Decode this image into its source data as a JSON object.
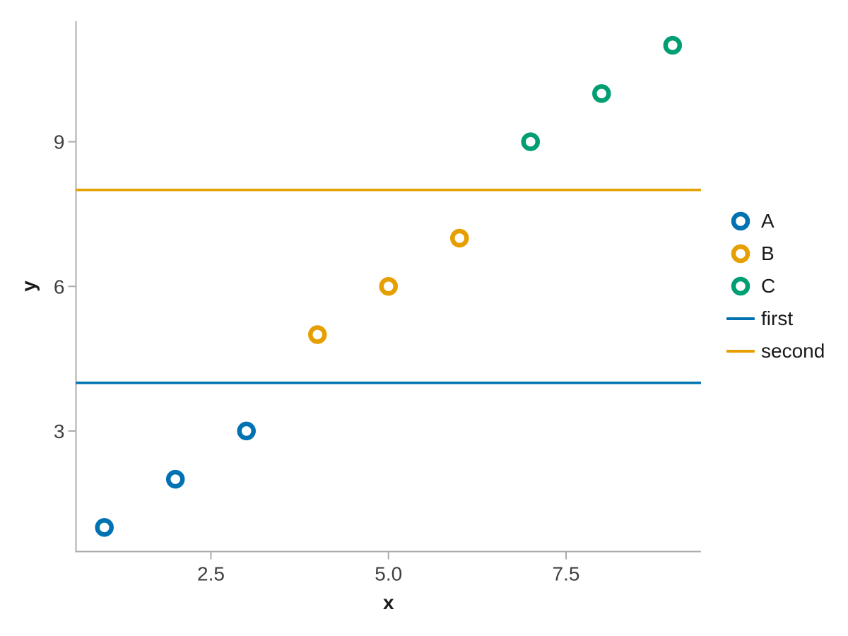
{
  "chart_data": {
    "type": "scatter",
    "title": "",
    "xlabel": "x",
    "ylabel": "y",
    "xlim": [
      0.6,
      9.4
    ],
    "ylim": [
      0.5,
      11.5
    ],
    "grid": false,
    "background": "#ffffff",
    "x_ticks": {
      "values": [
        2.5,
        5.0,
        7.5
      ],
      "labels": [
        "2.5",
        "5.0",
        "7.5"
      ]
    },
    "y_ticks": {
      "values": [
        3,
        6,
        9
      ],
      "labels": [
        "3",
        "6",
        "9"
      ]
    },
    "series": [
      {
        "name": "A",
        "marker": "open-circle",
        "color": "#0072B2",
        "x": [
          1,
          2,
          3
        ],
        "y": [
          1,
          2,
          3
        ]
      },
      {
        "name": "B",
        "marker": "open-circle",
        "color": "#E69F00",
        "x": [
          4,
          5,
          6
        ],
        "y": [
          5,
          6,
          7
        ]
      },
      {
        "name": "C",
        "marker": "open-circle",
        "color": "#009E73",
        "x": [
          7,
          8,
          9
        ],
        "y": [
          9,
          10,
          11
        ]
      }
    ],
    "hlines": [
      {
        "name": "first",
        "color": "#0072B2",
        "y": 4
      },
      {
        "name": "second",
        "color": "#E69F00",
        "y": 8
      }
    ],
    "legend": {
      "position": "right",
      "entries": [
        {
          "label": "A",
          "swatch": "circle",
          "color": "#0072B2"
        },
        {
          "label": "B",
          "swatch": "circle",
          "color": "#E69F00"
        },
        {
          "label": "C",
          "swatch": "circle",
          "color": "#009E73"
        },
        {
          "label": "first",
          "swatch": "line",
          "color": "#0072B2"
        },
        {
          "label": "second",
          "swatch": "line",
          "color": "#E69F00"
        }
      ]
    },
    "colors": {
      "axis": "#ababab",
      "tick_text": "#404040",
      "title_text": "#1a1a1a",
      "legend_text": "#1a1a1a"
    }
  }
}
